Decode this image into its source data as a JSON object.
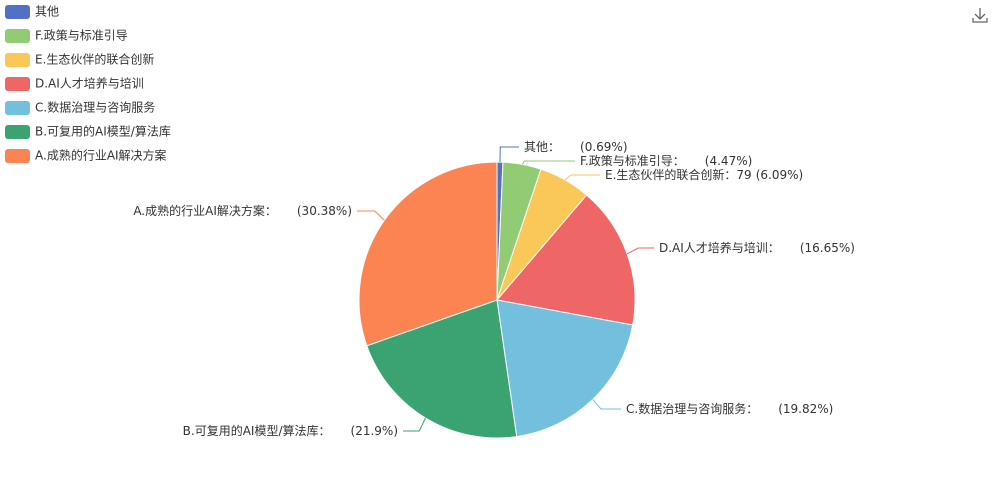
{
  "chart_data": {
    "type": "pie",
    "categories": [
      "其他",
      "F.政策与标准引导",
      "E.生态伙伴的联合创新",
      "D.AI人才培养与培训",
      "C.数据治理与咨询服务",
      "B.可复用的AI模型/算法库",
      "A.成熟的行业AI解决方案"
    ],
    "label_names": [
      "其他：",
      "F.政策与标准引导：",
      "E.生态伙伴的联合创新：",
      "D.AI人才培养与培训：",
      "C.数据治理与咨询服务：",
      "B.可复用的AI模型/算法库：",
      "A.成熟的行业AI解决方案："
    ],
    "counts": [
      null,
      null,
      79,
      null,
      null,
      null,
      null
    ],
    "values": [
      0.69,
      4.47,
      6.09,
      16.65,
      19.82,
      21.9,
      30.38
    ],
    "value_labels": [
      "(0.69%)",
      "(4.47%)",
      "(6.09%)",
      "(16.65%)",
      "(19.82%)",
      "(21.9%)",
      "(30.38%)"
    ],
    "colors": [
      "#5470c6",
      "#91cc75",
      "#fac858",
      "#ee6666",
      "#73c0de",
      "#3ba272",
      "#fc8452"
    ],
    "legend": "top-left"
  }
}
